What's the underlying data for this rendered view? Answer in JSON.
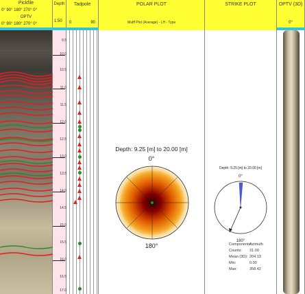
{
  "pickfile": {
    "title": "Pickfile",
    "azimuth_scale": "0°  90°  180°  270°  0°",
    "optv_label": "OPTV",
    "optv_scale": "0°  90°  180°  270°  0°"
  },
  "depth": {
    "title": "Depth",
    "scale": "1:50",
    "ticks": [
      "9.5",
      "10.0",
      "10.5",
      "11.0",
      "11.5",
      "12.0",
      "12.5",
      "13.0",
      "13.5",
      "14.0",
      "14.5",
      "15.0",
      "15.5",
      "16.0",
      "16.5",
      "17.0"
    ]
  },
  "tadpole": {
    "title": "Tadpole",
    "min": "0",
    "max": "90"
  },
  "polar": {
    "title": "POLAR PLOT",
    "subtitle": "Wulff Plot (Average) - LH - Type",
    "depth_text": "Depth: 9.25 [m] to 20.00 [m]",
    "top_label": "0°",
    "bottom_label": "180°"
  },
  "strike": {
    "title": "STRIKE PLOT",
    "depth_text": "Depth: 9.25 [m] to 20.00 [m]",
    "top_label": "0°",
    "bottom_label": "180°",
    "stats": [
      {
        "label": "Components:",
        "value": "Azimuth"
      },
      {
        "label": "Counts:",
        "value": "31.00"
      },
      {
        "label": "Mean (3D):",
        "value": "204.13"
      },
      {
        "label": "Min:",
        "value": "0.00"
      },
      {
        "label": "Max:",
        "value": "358.42"
      }
    ]
  },
  "optv3d": {
    "title": "OPTV (3D)",
    "label": "0°"
  },
  "colors": {
    "header": "#ffff33",
    "accent": "#34c3dd",
    "pick": "#e02020",
    "green": "#2a8a2a"
  }
}
